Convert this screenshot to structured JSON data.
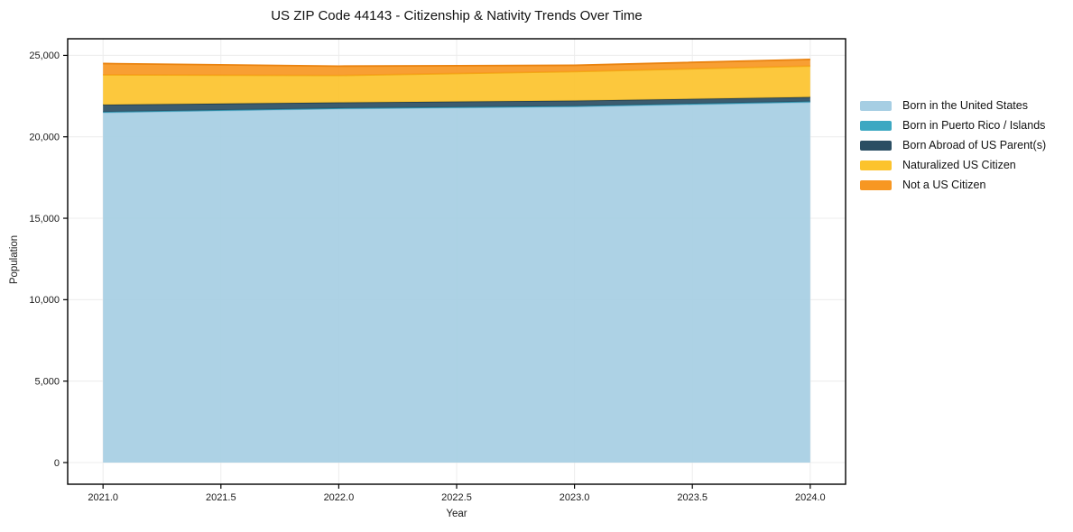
{
  "chart_data": {
    "type": "area",
    "stacked": true,
    "title": "US ZIP Code 44143 - Citizenship & Nativity Trends Over Time",
    "xlabel": "Year",
    "ylabel": "Population",
    "x": [
      2021,
      2022,
      2023,
      2024
    ],
    "series": [
      {
        "name": "Born in the United States",
        "color": "#a6cee3",
        "edge_color": "#8bbdd9",
        "values": [
          21500,
          21730,
          21860,
          22130
        ]
      },
      {
        "name": "Born in Puerto Rico / Islands",
        "color": "#3ca8c2",
        "edge_color": "#2f93ac",
        "values": [
          30,
          30,
          30,
          40
        ]
      },
      {
        "name": "Born Abroad of US Parent(s)",
        "color": "#2b4e63",
        "edge_color": "#233f50",
        "values": [
          440,
          350,
          330,
          270
        ]
      },
      {
        "name": "Naturalized US Citizen",
        "color": "#fcc32d",
        "edge_color": "#f3ab15",
        "values": [
          1840,
          1660,
          1790,
          1910
        ]
      },
      {
        "name": "Not a US Citizen",
        "color": "#f79722",
        "edge_color": "#ea830f",
        "values": [
          690,
          570,
          380,
          400
        ]
      }
    ],
    "xlim": [
      2020.85,
      2024.15
    ],
    "ylim": [
      -1330,
      26020
    ],
    "xtick_values": [
      2021.0,
      2021.5,
      2022.0,
      2022.5,
      2023.0,
      2023.5,
      2024.0
    ],
    "xtick_labels": [
      "2021.0",
      "2021.5",
      "2022.0",
      "2022.5",
      "2023.0",
      "2023.5",
      "2024.0"
    ],
    "ytick_values": [
      0,
      5000,
      10000,
      15000,
      20000,
      25000
    ],
    "ytick_labels": [
      "0",
      "5,000",
      "10,000",
      "15,000",
      "20,000",
      "25,000"
    ],
    "grid": true,
    "grid_color": "#ececec",
    "spine_color": "#000000",
    "tick_text_color": "#1a1a1a",
    "legend_position": "right"
  }
}
